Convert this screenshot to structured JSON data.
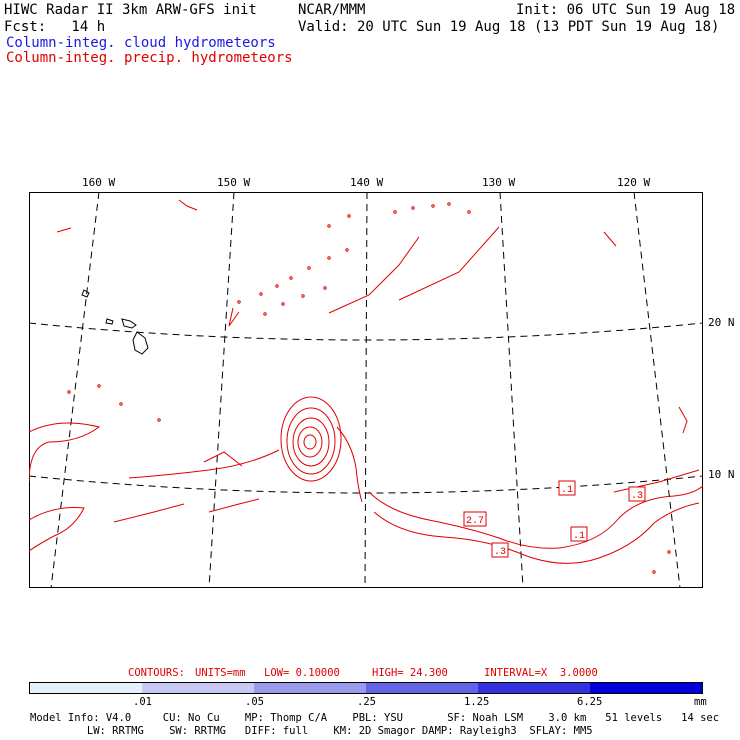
{
  "header": {
    "left_line1": "HIWC Radar II 3km ARW-GFS init",
    "center_line1": "NCAR/MMM",
    "right_line1": "Init: 06 UTC Sun 19 Aug 18",
    "left_line2": "Fcst:   14 h",
    "right_line2": "Valid: 20 UTC Sun 19 Aug 18 (13 PDT Sun 19 Aug 18)",
    "legend_cloud": "Column-integ. cloud hydrometeors",
    "legend_precip": "Column-integ. precip. hydrometeors"
  },
  "map": {
    "lon_labels": [
      "160 W",
      "150 W",
      "140 W",
      "130 W",
      "120 W"
    ],
    "lat_labels": [
      "20 N",
      "10 N"
    ],
    "contour_labels": [
      ".1",
      ".3",
      "2.7",
      ".3",
      ".1"
    ],
    "colors": {
      "precip": "#e00000",
      "grid": "#000000"
    }
  },
  "contours_info": {
    "label": "CONTOURS:",
    "units": "UNITS=mm",
    "low": "LOW= 0.10000",
    "high": "HIGH= 24.300",
    "interval": "INTERVAL=X  3.0000"
  },
  "colorbar": {
    "ticks": [
      ".01",
      ".05",
      ".25",
      "1.25",
      "6.25"
    ],
    "unit": "mm",
    "colors": [
      "#ffffff",
      "#e6f2fb",
      "#c8c8f5",
      "#9b9bee",
      "#6464e6",
      "#3232e0",
      "#0000dd"
    ]
  },
  "model_info": {
    "line1": "Model Info: V4.0     CU: No Cu    MP: Thomp C/A    PBL: YSU       SF: Noah LSM    3.0 km   51 levels   14 sec",
    "line2": "         LW: RRTMG    SW: RRTMG   DIFF: full    KM: 2D Smagor DAMP: Rayleigh3  SFLAY: MM5"
  }
}
